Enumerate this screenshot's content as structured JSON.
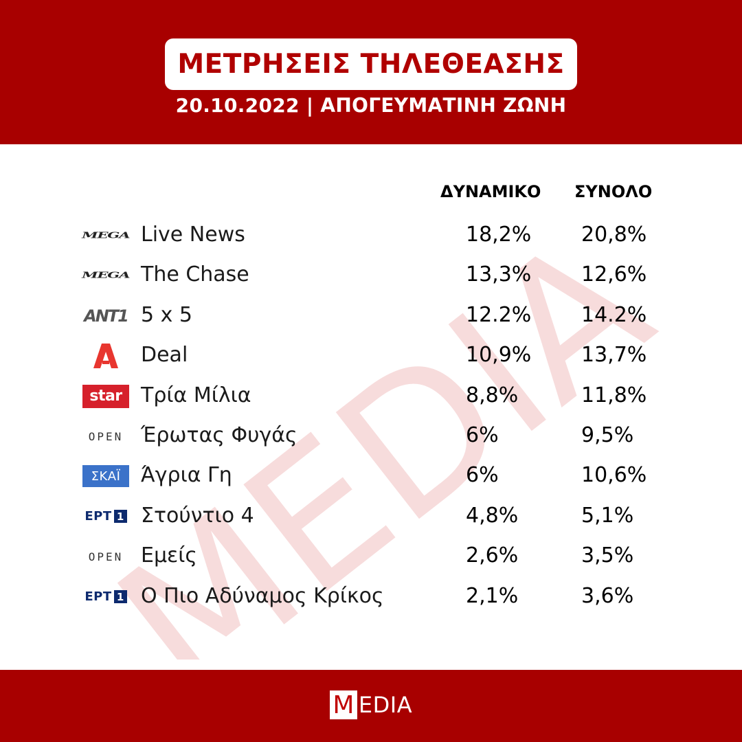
{
  "header": {
    "title": "ΜΕΤΡΗΣΕΙΣ ΤΗΛΕΘΕΑΣΗΣ",
    "subtitle": "20.10.2022 | ΑΠΟΓΕΥΜΑΤΙΝΗ ΖΩΝΗ",
    "background_color": "#a80000",
    "title_color": "#b00000"
  },
  "watermark": {
    "text": "MEDIA",
    "color": "#f7dcdc"
  },
  "table": {
    "columns": [
      "ΔΥΝΑΜΙΚΟ",
      "ΣΥΝΟΛΟ"
    ],
    "rows": [
      {
        "channel": "mega",
        "logo_text": "MEGA",
        "show": "Live News",
        "dynamiko": "18,2%",
        "synolo": "20,8%"
      },
      {
        "channel": "mega",
        "logo_text": "MEGA",
        "show": "The Chase",
        "dynamiko": "13,3%",
        "synolo": "12,6%"
      },
      {
        "channel": "ant1",
        "logo_text": "ANT1",
        "show": "5 x 5",
        "dynamiko": "12.2%",
        "synolo": "14.2%"
      },
      {
        "channel": "alpha",
        "logo_text": "",
        "show": "Deal",
        "dynamiko": "10,9%",
        "synolo": "13,7%"
      },
      {
        "channel": "star",
        "logo_text": "star",
        "show": "Τρία Μίλια",
        "dynamiko": "8,8%",
        "synolo": "11,8%"
      },
      {
        "channel": "open",
        "logo_text": "OPEN",
        "show": "Έρωτας Φυγάς",
        "dynamiko": "6%",
        "synolo": "9,5%"
      },
      {
        "channel": "skai",
        "logo_text": "ΣΚΑΪ",
        "show": "Άγρια Γη",
        "dynamiko": "6%",
        "synolo": "10,6%"
      },
      {
        "channel": "ert1",
        "logo_text": "ΕΡΤ",
        "logo_num": "1",
        "show": "Στούντιο 4",
        "dynamiko": "4,8%",
        "synolo": "5,1%"
      },
      {
        "channel": "open",
        "logo_text": "OPEN",
        "show": "Εμείς",
        "dynamiko": "2,6%",
        "synolo": "3,5%"
      },
      {
        "channel": "ert1",
        "logo_text": "ΕΡΤ",
        "logo_num": "1",
        "show": "Ο Πιο Αδύναμος Κρίκος",
        "dynamiko": "2,1%",
        "synolo": "3,6%"
      }
    ]
  },
  "footer": {
    "brand_first": "M",
    "brand_rest": "EDIA",
    "background_color": "#a80000"
  }
}
